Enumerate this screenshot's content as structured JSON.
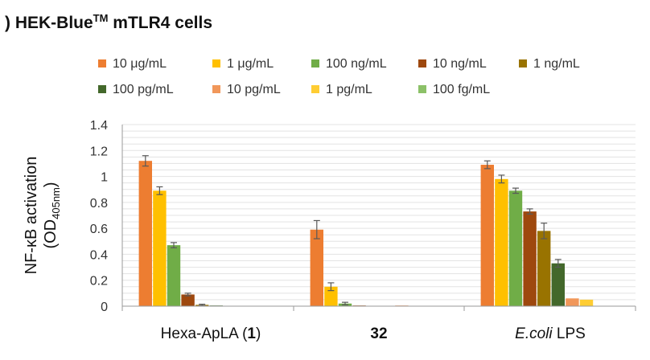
{
  "chart_data": {
    "type": "bar",
    "title_parts": {
      "prefix": ") HEK-Blue",
      "superscript": "TM",
      "suffix": " mTLR4 cells"
    },
    "ylabel_line1": "NF-κB activation",
    "ylabel_line2_parts": {
      "prefix": "(OD",
      "subscript": "405nm",
      "suffix": ")"
    },
    "ylim": [
      0,
      1.4
    ],
    "yticks": [
      "0",
      "0.2",
      "0.4",
      "0.6",
      "0.8",
      "1",
      "1.2",
      "1.4"
    ],
    "grid": true,
    "legend_position": "top",
    "categories": [
      {
        "parts": [
          {
            "text": "Hexa-ApLA (",
            "bold": false,
            "italic": false
          },
          {
            "text": "1",
            "bold": true,
            "italic": false
          },
          {
            "text": ")",
            "bold": false,
            "italic": false
          }
        ]
      },
      {
        "parts": [
          {
            "text": "32",
            "bold": true,
            "italic": false
          }
        ]
      },
      {
        "parts": [
          {
            "text": "E.coli",
            "bold": false,
            "italic": true
          },
          {
            "text": " LPS",
            "bold": false,
            "italic": false
          }
        ]
      }
    ],
    "series": [
      {
        "name": "10 μg/mL",
        "color": "#ED7D31",
        "values": [
          1.12,
          0.59,
          1.09
        ],
        "errors": [
          0.04,
          0.07,
          0.03
        ]
      },
      {
        "name": "1 μg/mL",
        "color": "#FFC000",
        "values": [
          0.89,
          0.15,
          0.98
        ],
        "errors": [
          0.03,
          0.03,
          0.03
        ]
      },
      {
        "name": "100 ng/mL",
        "color": "#70AD47",
        "values": [
          0.47,
          0.02,
          0.89
        ],
        "errors": [
          0.02,
          0.01,
          0.02
        ]
      },
      {
        "name": "10 ng/mL",
        "color": "#9E480E",
        "values": [
          0.09,
          0.005,
          0.73
        ],
        "errors": [
          0.01,
          0.0,
          0.02
        ]
      },
      {
        "name": "1 ng/mL",
        "color": "#997300",
        "values": [
          0.01,
          0.0,
          0.58
        ],
        "errors": [
          0.005,
          0.0,
          0.06
        ]
      },
      {
        "name": "100 pg/mL",
        "color": "#43682B",
        "values": [
          0.005,
          0.0,
          0.33
        ],
        "errors": [
          0.0,
          0.0,
          0.03
        ]
      },
      {
        "name": "10 pg/mL",
        "color": "#F1975A",
        "values": [
          0.0,
          0.005,
          0.06
        ],
        "errors": [
          0.0,
          0.0,
          0.0
        ]
      },
      {
        "name": "1 pg/mL",
        "color": "#FFCD33",
        "values": [
          0.0,
          0.0,
          0.05
        ],
        "errors": [
          0.0,
          0.0,
          0.0
        ]
      },
      {
        "name": "100 fg/mL",
        "color": "#8CC168",
        "values": [
          0.0,
          0.0,
          0.0
        ],
        "errors": [
          0.0,
          0.0,
          0.0
        ]
      }
    ]
  }
}
